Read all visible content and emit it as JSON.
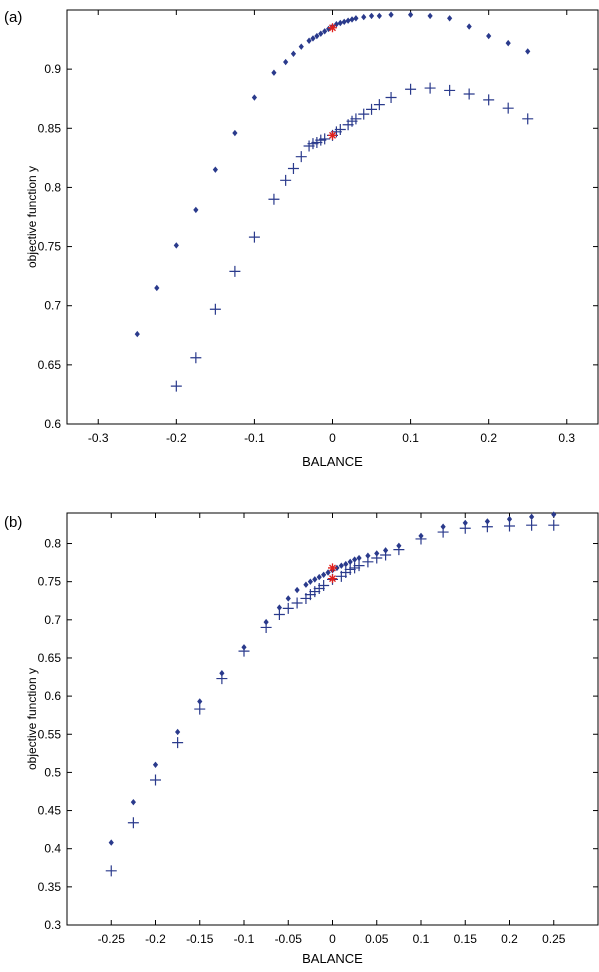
{
  "colors": {
    "series_diamond": "#2a3a8c",
    "series_plus": "#2a3a8c",
    "highlight": "#e0201b",
    "axis": "#000000"
  },
  "chart_data": [
    {
      "panel_label": "(a)",
      "type": "scatter",
      "xlabel": "BALANCE",
      "ylabel": "objective function y",
      "xlim": [
        -0.34,
        0.34
      ],
      "ylim": [
        0.6,
        0.95
      ],
      "xticks": [
        -0.3,
        -0.2,
        -0.1,
        0,
        0.1,
        0.2,
        0.3
      ],
      "xtick_labels": [
        "-0.3",
        "-0.2",
        "-0.1",
        "0",
        "0.1",
        "0.2",
        "0.3"
      ],
      "yticks": [
        0.6,
        0.65,
        0.7,
        0.75,
        0.8,
        0.85,
        0.9
      ],
      "ytick_labels": [
        "0.6",
        "0.65",
        "0.7",
        "0.75",
        "0.8",
        "0.85",
        "0.9"
      ],
      "grid": false,
      "series": [
        {
          "marker": "diamond",
          "x": [
            -0.25,
            -0.225,
            -0.2,
            -0.175,
            -0.15,
            -0.125,
            -0.1,
            -0.075,
            -0.06,
            -0.05,
            -0.04,
            -0.03,
            -0.025,
            -0.02,
            -0.015,
            -0.01,
            -0.005,
            0,
            0.005,
            0.01,
            0.015,
            0.02,
            0.025,
            0.03,
            0.04,
            0.05,
            0.06,
            0.075,
            0.1,
            0.125,
            0.15,
            0.175,
            0.2,
            0.225,
            0.25
          ],
          "y": [
            0.676,
            0.715,
            0.751,
            0.781,
            0.815,
            0.846,
            0.876,
            0.897,
            0.906,
            0.913,
            0.919,
            0.924,
            0.926,
            0.928,
            0.93,
            0.932,
            0.934,
            0.936,
            0.938,
            0.939,
            0.94,
            0.941,
            0.942,
            0.943,
            0.944,
            0.945,
            0.945,
            0.946,
            0.946,
            0.945,
            0.943,
            0.936,
            0.928,
            0.922,
            0.915
          ]
        },
        {
          "marker": "plus",
          "x": [
            -0.2,
            -0.175,
            -0.15,
            -0.125,
            -0.1,
            -0.075,
            -0.06,
            -0.05,
            -0.04,
            -0.03,
            -0.025,
            -0.02,
            -0.015,
            -0.01,
            0,
            0.005,
            0.01,
            0.02,
            0.025,
            0.03,
            0.04,
            0.05,
            0.06,
            0.075,
            0.1,
            0.125,
            0.15,
            0.175,
            0.2,
            0.225,
            0.25
          ],
          "y": [
            0.632,
            0.656,
            0.697,
            0.729,
            0.758,
            0.79,
            0.806,
            0.816,
            0.826,
            0.835,
            0.837,
            0.838,
            0.84,
            0.841,
            0.844,
            0.847,
            0.849,
            0.853,
            0.856,
            0.858,
            0.862,
            0.866,
            0.87,
            0.876,
            0.883,
            0.884,
            0.882,
            0.879,
            0.874,
            0.867,
            0.858
          ]
        }
      ],
      "highlight_points": [
        {
          "x": 0,
          "y": 0.935
        },
        {
          "x": 0,
          "y": 0.844
        }
      ]
    },
    {
      "panel_label": "(b)",
      "type": "scatter",
      "xlabel": "BALANCE",
      "ylabel": "objective function y",
      "xlim": [
        -0.3,
        0.3
      ],
      "ylim": [
        0.3,
        0.84
      ],
      "xticks": [
        -0.25,
        -0.2,
        -0.15,
        -0.1,
        -0.05,
        0,
        0.05,
        0.1,
        0.15,
        0.2,
        0.25
      ],
      "xtick_labels": [
        "-0.25",
        "-0.2",
        "-0.15",
        "-0.1",
        "-0.05",
        "0",
        "0.05",
        "0.1",
        "0.15",
        "0.2",
        "0.25"
      ],
      "yticks": [
        0.3,
        0.35,
        0.4,
        0.45,
        0.5,
        0.55,
        0.6,
        0.65,
        0.7,
        0.75,
        0.8
      ],
      "ytick_labels": [
        "0.3",
        "0.35",
        "0.4",
        "0.45",
        "0.5",
        "0.55",
        "0.6",
        "0.65",
        "0.7",
        "0.75",
        "0.8"
      ],
      "grid": false,
      "series": [
        {
          "marker": "diamond",
          "x": [
            -0.25,
            -0.225,
            -0.2,
            -0.175,
            -0.15,
            -0.125,
            -0.1,
            -0.075,
            -0.06,
            -0.05,
            -0.04,
            -0.03,
            -0.025,
            -0.02,
            -0.015,
            -0.01,
            -0.005,
            0,
            0.005,
            0.01,
            0.015,
            0.02,
            0.025,
            0.03,
            0.04,
            0.05,
            0.06,
            0.075,
            0.1,
            0.125,
            0.15,
            0.175,
            0.2,
            0.225,
            0.25
          ],
          "y": [
            0.408,
            0.461,
            0.51,
            0.553,
            0.593,
            0.63,
            0.664,
            0.697,
            0.716,
            0.728,
            0.739,
            0.746,
            0.75,
            0.753,
            0.756,
            0.759,
            0.762,
            0.765,
            0.768,
            0.771,
            0.773,
            0.776,
            0.779,
            0.781,
            0.784,
            0.787,
            0.791,
            0.797,
            0.81,
            0.822,
            0.827,
            0.829,
            0.832,
            0.835,
            0.838
          ]
        },
        {
          "marker": "plus",
          "x": [
            -0.25,
            -0.225,
            -0.2,
            -0.175,
            -0.15,
            -0.125,
            -0.1,
            -0.075,
            -0.06,
            -0.05,
            -0.04,
            -0.03,
            -0.025,
            -0.02,
            -0.015,
            -0.01,
            0,
            0.01,
            0.015,
            0.02,
            0.025,
            0.03,
            0.04,
            0.05,
            0.06,
            0.075,
            0.1,
            0.125,
            0.15,
            0.175,
            0.2,
            0.225,
            0.25
          ],
          "y": [
            0.371,
            0.434,
            0.49,
            0.539,
            0.583,
            0.623,
            0.659,
            0.69,
            0.707,
            0.715,
            0.722,
            0.728,
            0.733,
            0.737,
            0.741,
            0.745,
            0.753,
            0.757,
            0.762,
            0.766,
            0.768,
            0.771,
            0.776,
            0.781,
            0.785,
            0.792,
            0.806,
            0.815,
            0.82,
            0.822,
            0.823,
            0.824,
            0.824
          ]
        }
      ],
      "highlight_points": [
        {
          "x": 0,
          "y": 0.768
        },
        {
          "x": 0,
          "y": 0.754
        }
      ]
    }
  ]
}
